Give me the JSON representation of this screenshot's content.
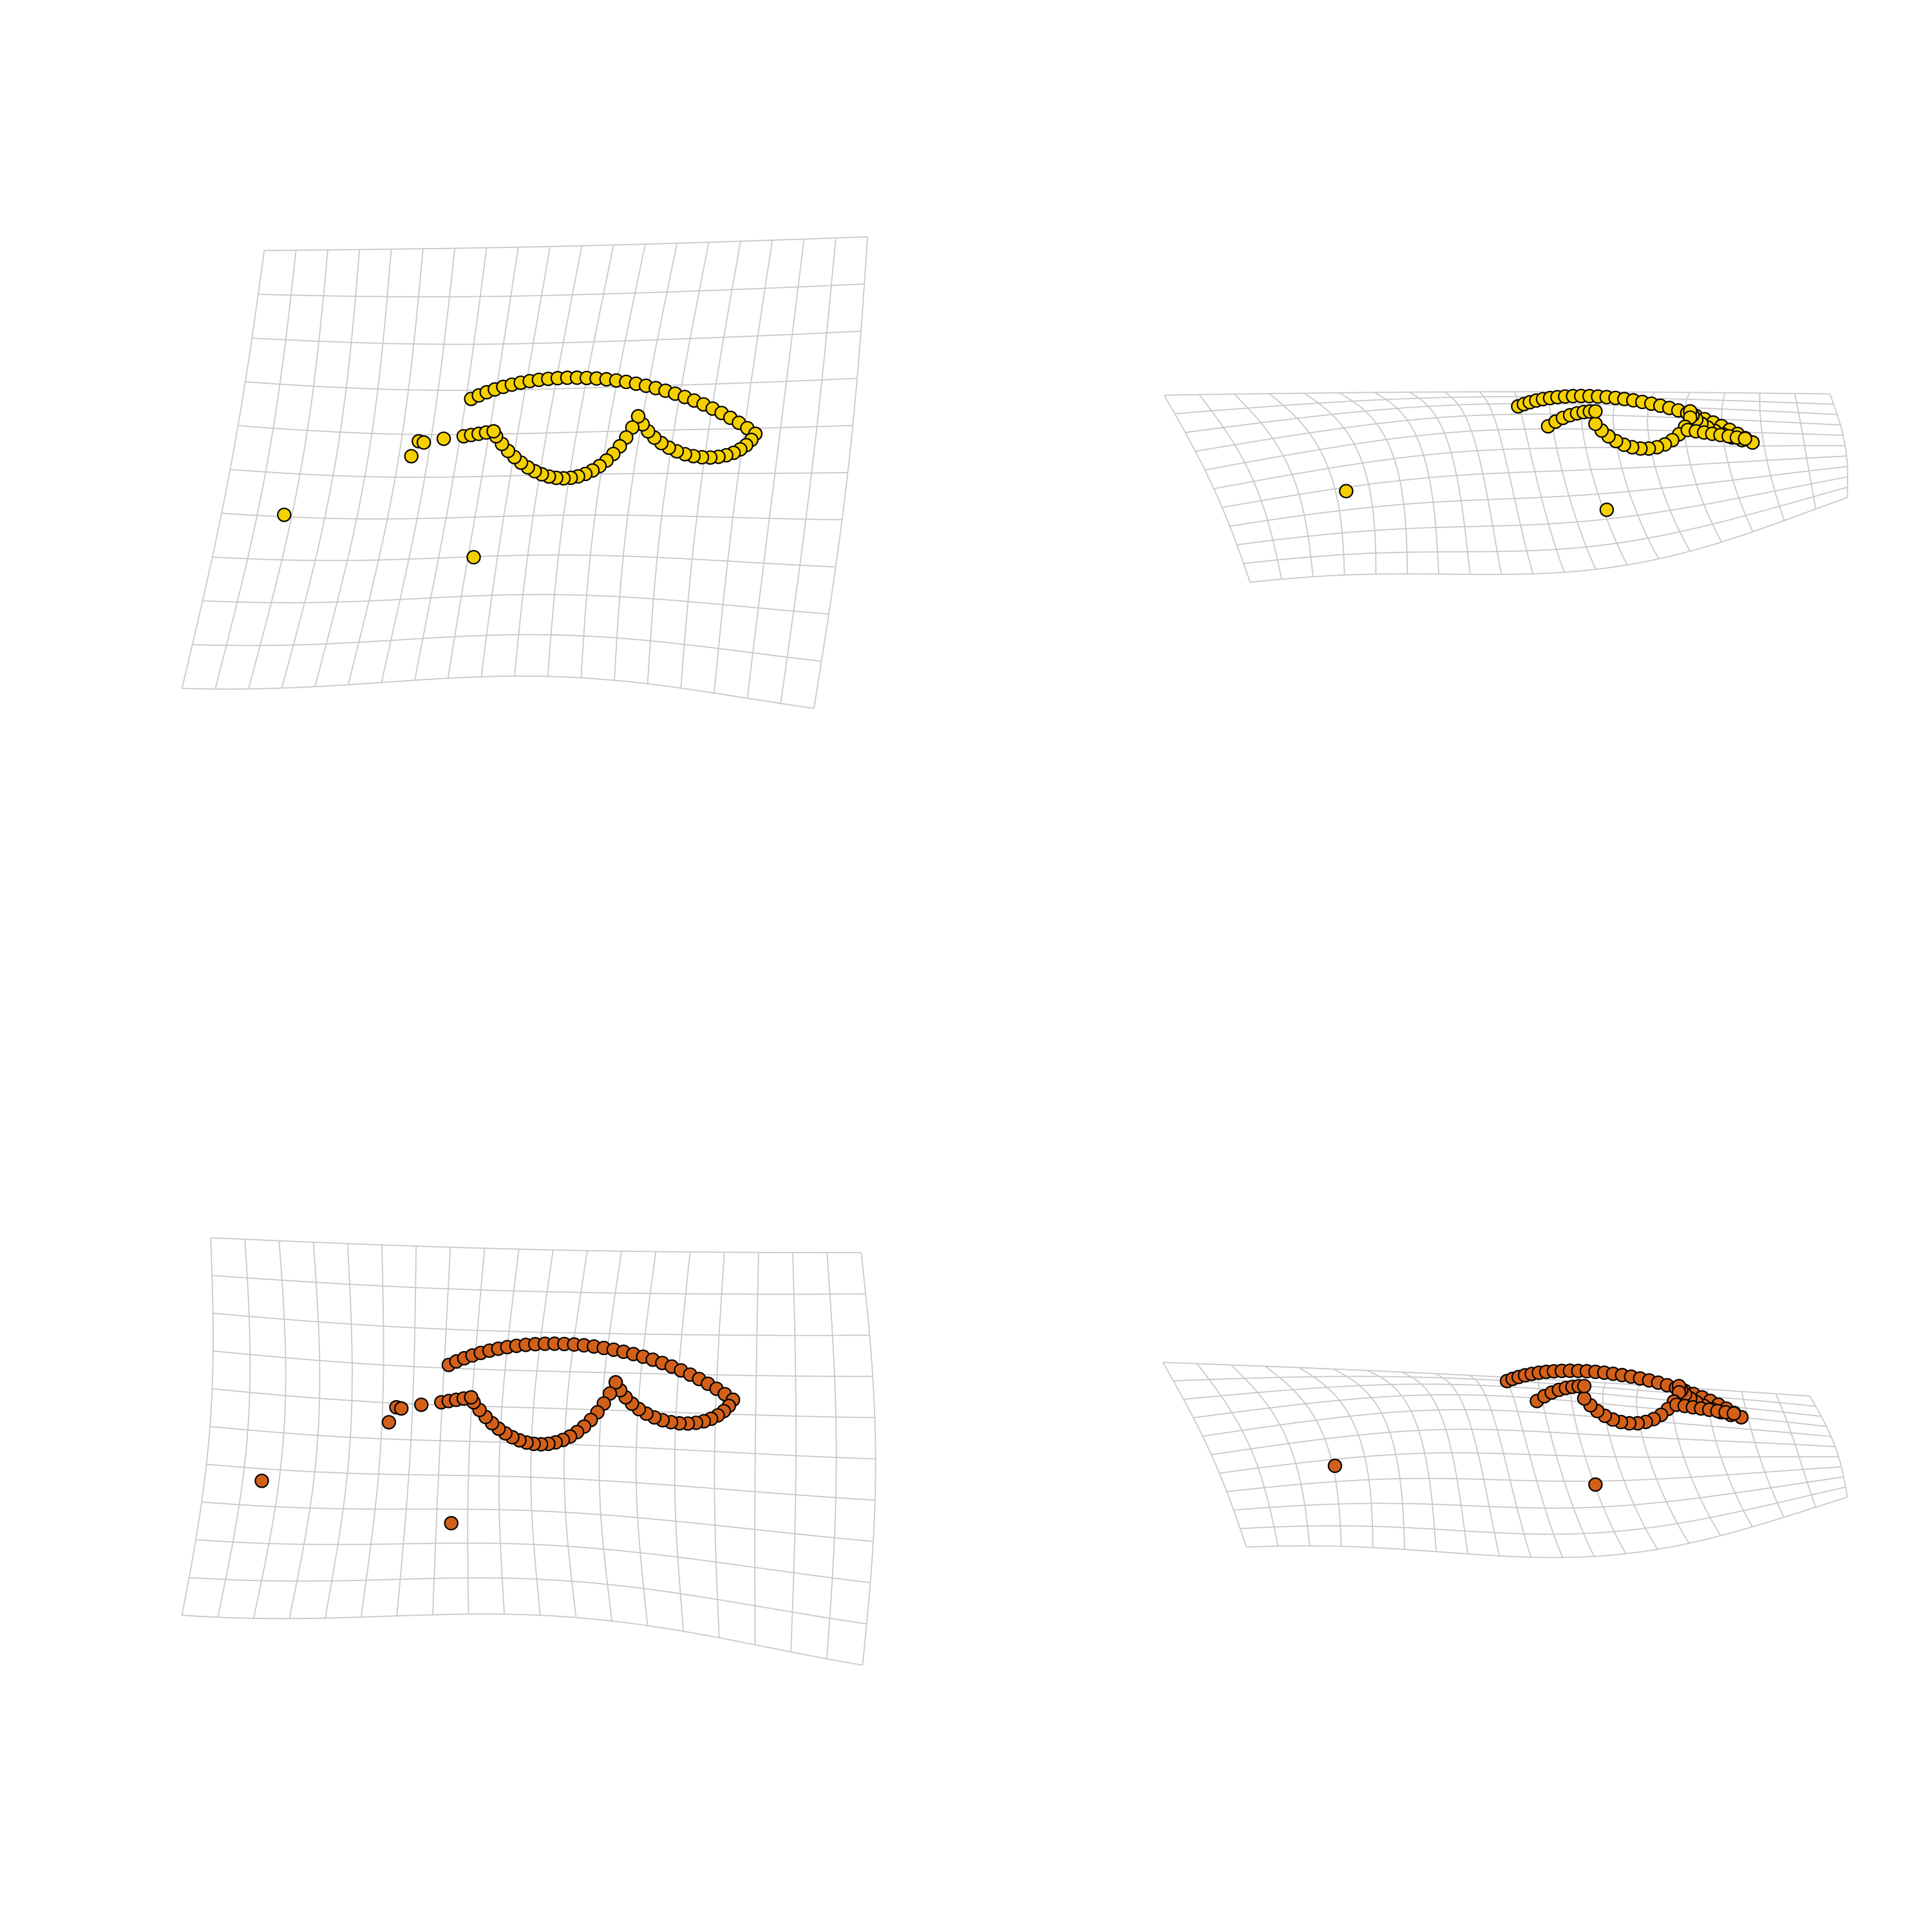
{
  "figure": {
    "panels": [
      {
        "name": "top-left",
        "point_color": "#f5d000",
        "view": "front",
        "grid_lines": "light-gray"
      },
      {
        "name": "top-right",
        "point_color": "#f5d000",
        "view": "oblique",
        "grid_lines": "light-gray"
      },
      {
        "name": "bottom-left",
        "point_color": "#d2601a",
        "view": "front",
        "grid_lines": "light-gray"
      },
      {
        "name": "bottom-right",
        "point_color": "#d2601a",
        "view": "oblique",
        "grid_lines": "light-gray"
      }
    ],
    "colors": {
      "grid": "#c9c9c9",
      "outline": "#000000",
      "background": "#ffffff"
    }
  }
}
